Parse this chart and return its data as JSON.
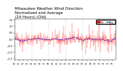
{
  "title": "Milwaukee Weather Wind Direction\nNormalized and Average\n(24 Hours) (Old)",
  "title_fontsize": 4.0,
  "background_color": "#ffffff",
  "plot_bg_color": "#ffffff",
  "bar_color": "#ff0000",
  "avg_color": "#0000cc",
  "legend_bar_label": "Dir.",
  "legend_avg_label": "Avg.",
  "ylim": [
    -1.6,
    1.6
  ],
  "yticks": [
    -1.5,
    -1.0,
    -0.5,
    0.0,
    0.5,
    1.0,
    1.5
  ],
  "ytick_fontsize": 2.5,
  "xtick_fontsize": 2.0,
  "num_points": 288,
  "vgrid_interval": 48,
  "seed": 42
}
